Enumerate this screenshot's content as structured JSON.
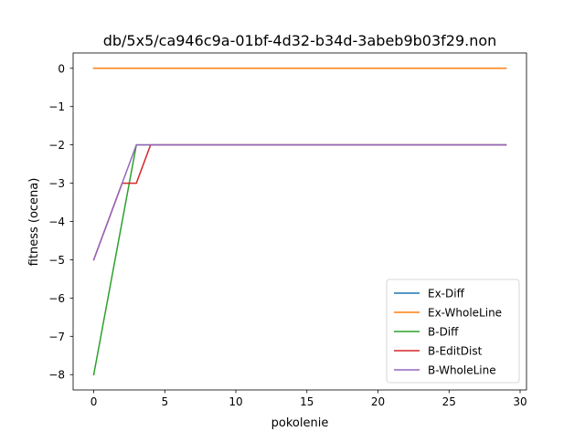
{
  "chart_data": {
    "type": "line",
    "title": "db/5x5/ca946c9a-01bf-4d32-b34d-3abeb9b03f29.non",
    "xlabel": "pokolenie",
    "ylabel": "fitness (ocena)",
    "xlim": [
      -1.45,
      30.45
    ],
    "ylim": [
      -8.4,
      0.4
    ],
    "xticks": [
      0,
      5,
      10,
      15,
      20,
      25,
      30
    ],
    "xtick_labels": [
      "0",
      "5",
      "10",
      "15",
      "20",
      "25",
      "30"
    ],
    "yticks": [
      0,
      -1,
      -2,
      -3,
      -4,
      -5,
      -6,
      -7,
      -8
    ],
    "ytick_labels": [
      "0",
      "−1",
      "−2",
      "−3",
      "−4",
      "−5",
      "−6",
      "−7",
      "−8"
    ],
    "grid": false,
    "legend_position": "lower-right",
    "series": [
      {
        "name": "Ex-Diff",
        "color": "#1f77b4",
        "x": [
          0,
          29
        ],
        "y": [
          0,
          0
        ]
      },
      {
        "name": "Ex-WholeLine",
        "color": "#ff7f0e",
        "x": [
          0,
          29
        ],
        "y": [
          0,
          0
        ]
      },
      {
        "name": "B-Diff",
        "color": "#2ca02c",
        "x": [
          0,
          3,
          29
        ],
        "y": [
          -8,
          -2,
          -2
        ]
      },
      {
        "name": "B-EditDist",
        "color": "#d62728",
        "x": [
          0,
          2,
          3,
          4,
          29
        ],
        "y": [
          -5,
          -3,
          -3,
          -2,
          -2
        ]
      },
      {
        "name": "B-WholeLine",
        "color": "#9467bd",
        "x": [
          0,
          3,
          29
        ],
        "y": [
          -5,
          -2,
          -2
        ]
      }
    ]
  }
}
